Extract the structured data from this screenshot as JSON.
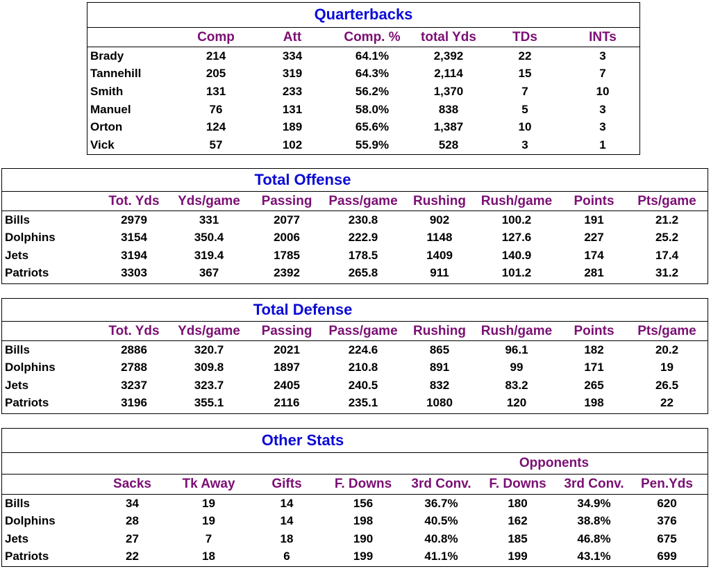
{
  "quarterbacks": {
    "title": "Quarterbacks",
    "headers": [
      "Comp",
      "Att",
      "Comp. %",
      "total Yds",
      "TDs",
      "INTs"
    ],
    "rows": [
      {
        "name": "Brady",
        "values": [
          "214",
          "334",
          "64.1%",
          "2,392",
          "22",
          "3"
        ]
      },
      {
        "name": "Tannehill",
        "values": [
          "205",
          "319",
          "64.3%",
          "2,114",
          "15",
          "7"
        ]
      },
      {
        "name": "Smith",
        "values": [
          "131",
          "233",
          "56.2%",
          "1,370",
          "7",
          "10"
        ]
      },
      {
        "name": "Manuel",
        "values": [
          "76",
          "131",
          "58.0%",
          "838",
          "5",
          "3"
        ]
      },
      {
        "name": "Orton",
        "values": [
          "124",
          "189",
          "65.6%",
          "1,387",
          "10",
          "3"
        ]
      },
      {
        "name": "Vick",
        "values": [
          "57",
          "102",
          "55.9%",
          "528",
          "3",
          "1"
        ]
      }
    ]
  },
  "total_offense": {
    "title": "Total Offense",
    "headers": [
      "Tot. Yds",
      "Yds/game",
      "Passing",
      "Pass/game",
      "Rushing",
      "Rush/game",
      "Points",
      "Pts/game"
    ],
    "rows": [
      {
        "name": "Bills",
        "values": [
          "2979",
          "331",
          "2077",
          "230.8",
          "902",
          "100.2",
          "191",
          "21.2"
        ]
      },
      {
        "name": "Dolphins",
        "values": [
          "3154",
          "350.4",
          "2006",
          "222.9",
          "1148",
          "127.6",
          "227",
          "25.2"
        ]
      },
      {
        "name": "Jets",
        "values": [
          "3194",
          "319.4",
          "1785",
          "178.5",
          "1409",
          "140.9",
          "174",
          "17.4"
        ]
      },
      {
        "name": "Patriots",
        "values": [
          "3303",
          "367",
          "2392",
          "265.8",
          "911",
          "101.2",
          "281",
          "31.2"
        ]
      }
    ]
  },
  "total_defense": {
    "title": "Total Defense",
    "headers": [
      "Tot. Yds",
      "Yds/game",
      "Passing",
      "Pass/game",
      "Rushing",
      "Rush/game",
      "Points",
      "Pts/game"
    ],
    "rows": [
      {
        "name": "Bills",
        "values": [
          "2886",
          "320.7",
          "2021",
          "224.6",
          "865",
          "96.1",
          "182",
          "20.2"
        ]
      },
      {
        "name": "Dolphins",
        "values": [
          "2788",
          "309.8",
          "1897",
          "210.8",
          "891",
          "99",
          "171",
          "19"
        ]
      },
      {
        "name": "Jets",
        "values": [
          "3237",
          "323.7",
          "2405",
          "240.5",
          "832",
          "83.2",
          "265",
          "26.5"
        ]
      },
      {
        "name": "Patriots",
        "values": [
          "3196",
          "355.1",
          "2116",
          "235.1",
          "1080",
          "120",
          "198",
          "22"
        ]
      }
    ]
  },
  "other_stats": {
    "title": "Other Stats",
    "opponents_label": "Opponents",
    "headers": [
      "Sacks",
      "Tk Away",
      "Gifts",
      "F. Downs",
      "3rd Conv.",
      "F. Downs",
      "3rd Conv.",
      "Pen.Yds"
    ],
    "rows": [
      {
        "name": "Bills",
        "values": [
          "34",
          "19",
          "14",
          "156",
          "36.7%",
          "180",
          "34.9%",
          "620"
        ]
      },
      {
        "name": "Dolphins",
        "values": [
          "28",
          "19",
          "14",
          "198",
          "40.5%",
          "162",
          "38.8%",
          "376"
        ]
      },
      {
        "name": "Jets",
        "values": [
          "27",
          "7",
          "18",
          "190",
          "40.8%",
          "185",
          "46.8%",
          "675"
        ]
      },
      {
        "name": "Patriots",
        "values": [
          "22",
          "18",
          "6",
          "199",
          "41.1%",
          "199",
          "43.1%",
          "699"
        ]
      }
    ]
  }
}
